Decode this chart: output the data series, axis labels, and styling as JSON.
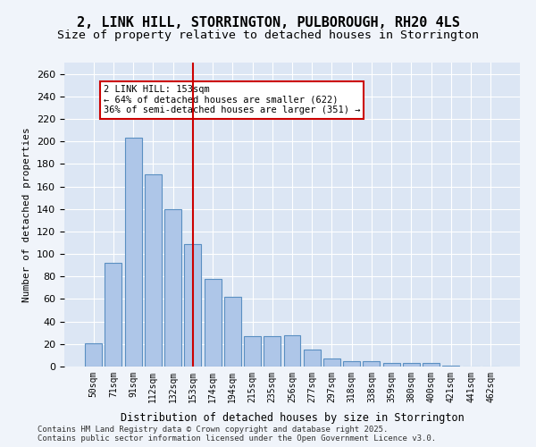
{
  "title_line1": "2, LINK HILL, STORRINGTON, PULBOROUGH, RH20 4LS",
  "title_line2": "Size of property relative to detached houses in Storrington",
  "xlabel": "Distribution of detached houses by size in Storrington",
  "ylabel": "Number of detached properties",
  "categories": [
    "50sqm",
    "71sqm",
    "91sqm",
    "112sqm",
    "132sqm",
    "153sqm",
    "174sqm",
    "194sqm",
    "215sqm",
    "235sqm",
    "256sqm",
    "277sqm",
    "297sqm",
    "318sqm",
    "338sqm",
    "359sqm",
    "380sqm",
    "400sqm",
    "421sqm",
    "441sqm",
    "462sqm"
  ],
  "values": [
    21,
    92,
    203,
    171,
    140,
    109,
    78,
    62,
    27,
    27,
    28,
    15,
    7,
    5,
    5,
    3,
    3,
    3,
    1,
    0,
    0
  ],
  "bar_color": "#aec6e8",
  "bar_edge_color": "#5a8fc2",
  "vline_x": 5,
  "vline_color": "#cc0000",
  "annotation_text": "2 LINK HILL: 153sqm\n← 64% of detached houses are smaller (622)\n36% of semi-detached houses are larger (351) →",
  "annotation_box_color": "#cc0000",
  "ylim": [
    0,
    270
  ],
  "yticks": [
    0,
    20,
    40,
    60,
    80,
    100,
    120,
    140,
    160,
    180,
    200,
    220,
    240,
    260
  ],
  "footnote": "Contains HM Land Registry data © Crown copyright and database right 2025.\nContains public sector information licensed under the Open Government Licence v3.0.",
  "bg_color": "#f0f4fa",
  "plot_bg_color": "#dce6f4",
  "grid_color": "#ffffff"
}
